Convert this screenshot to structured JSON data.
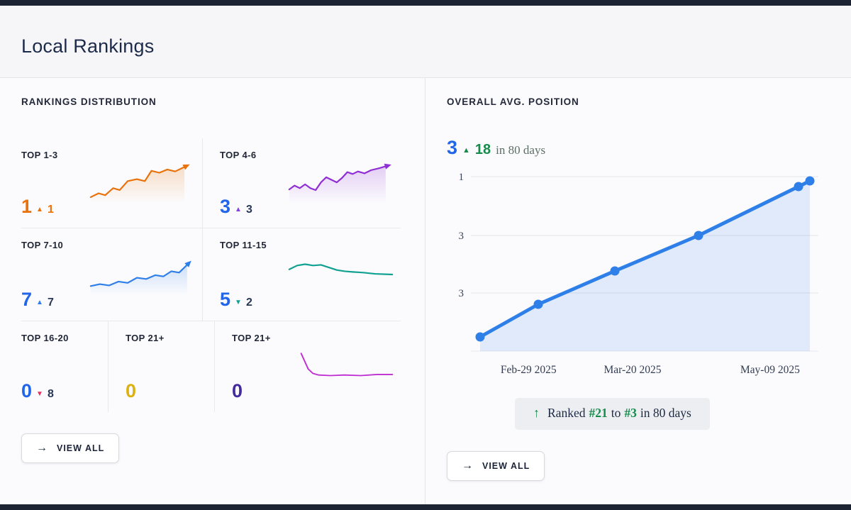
{
  "window": {
    "frame_color": "#1c2433"
  },
  "page": {
    "title": "Local Rankings"
  },
  "icons": {
    "arrow_right": "→",
    "arrow_up": "↑",
    "triangle_up": "▲",
    "triangle_down": "▼"
  },
  "left_panel": {
    "header": "RANKINGS DISTRIBUTION",
    "view_all_label": "VIEW ALL",
    "cards": [
      {
        "label": "TOP 1-3",
        "value": "1",
        "direction": "up",
        "delta": "1",
        "value_color": "#e8720c",
        "arrow_color": "#e8720c",
        "delta_color": "#e8720c",
        "spark": {
          "color": "#e8720c",
          "fill": true,
          "arrow": true,
          "points": [
            [
              2,
              54
            ],
            [
              14,
              48
            ],
            [
              24,
              51
            ],
            [
              36,
              40
            ],
            [
              46,
              43
            ],
            [
              58,
              29
            ],
            [
              72,
              26
            ],
            [
              84,
              29
            ],
            [
              94,
              13
            ],
            [
              106,
              16
            ],
            [
              118,
              11
            ],
            [
              130,
              14
            ],
            [
              144,
              7
            ]
          ]
        }
      },
      {
        "label": "TOP 4-6",
        "value": "3",
        "direction": "up",
        "delta": "3",
        "value_color": "#2166e8",
        "arrow_color": "#8440e0",
        "delta_color": "#273755",
        "spark": {
          "color": "#8f2fd4",
          "fill": true,
          "arrow": true,
          "points": [
            [
              2,
              42
            ],
            [
              10,
              36
            ],
            [
              18,
              40
            ],
            [
              26,
              34
            ],
            [
              34,
              40
            ],
            [
              42,
              43
            ],
            [
              50,
              31
            ],
            [
              58,
              23
            ],
            [
              66,
              27
            ],
            [
              74,
              31
            ],
            [
              82,
              24
            ],
            [
              90,
              15
            ],
            [
              98,
              18
            ],
            [
              106,
              14
            ],
            [
              116,
              17
            ],
            [
              126,
              12
            ],
            [
              138,
              9
            ],
            [
              148,
              6
            ]
          ]
        }
      },
      {
        "label": "TOP 7-10",
        "value": "7",
        "direction": "up",
        "delta": "7",
        "value_color": "#2166e8",
        "arrow_color": "#2e7fe8",
        "delta_color": "#273755",
        "spark": {
          "color": "#2e7fe8",
          "fill": true,
          "arrow": true,
          "points": [
            [
              2,
              50
            ],
            [
              16,
              47
            ],
            [
              30,
              49
            ],
            [
              44,
              43
            ],
            [
              58,
              45
            ],
            [
              72,
              37
            ],
            [
              86,
              39
            ],
            [
              100,
              33
            ],
            [
              112,
              35
            ],
            [
              124,
              27
            ],
            [
              136,
              29
            ],
            [
              148,
              17
            ]
          ]
        }
      },
      {
        "label": "TOP 11-15",
        "value": "5",
        "direction": "down",
        "delta": "2",
        "value_color": "#2166e8",
        "arrow_color": "#11a192",
        "delta_color": "#273755",
        "spark": {
          "color": "#11a192",
          "fill": false,
          "arrow": false,
          "points": [
            [
              2,
              24
            ],
            [
              14,
              18
            ],
            [
              26,
              16
            ],
            [
              38,
              18
            ],
            [
              50,
              17
            ],
            [
              62,
              21
            ],
            [
              74,
              25
            ],
            [
              86,
              27
            ],
            [
              98,
              28
            ],
            [
              114,
              29
            ],
            [
              132,
              31
            ],
            [
              158,
              32
            ]
          ]
        }
      },
      {
        "label": "TOP 16-20",
        "value": "0",
        "direction": "down",
        "delta": "8",
        "value_color": "#2166e8",
        "arrow_color": "#e5315c",
        "delta_color": "#273755",
        "spark": null
      },
      {
        "label": "TOP 21+",
        "value": "0",
        "value_color": "#dcb211",
        "spark": null
      },
      {
        "label": "TOP 21+",
        "value": "0",
        "value_color": "#432a9e",
        "spark": {
          "color": "#bf2ed1",
          "fill": false,
          "arrow": false,
          "points": [
            [
              2,
              8
            ],
            [
              8,
              22
            ],
            [
              14,
              36
            ],
            [
              22,
              44
            ],
            [
              32,
              47
            ],
            [
              52,
              48
            ],
            [
              76,
              47
            ],
            [
              104,
              48
            ],
            [
              132,
              46
            ],
            [
              158,
              46
            ]
          ]
        }
      }
    ]
  },
  "right_panel": {
    "header": "OVERALL AVG. POSITION",
    "stat": {
      "value": "3",
      "delta": "18",
      "suffix": "in 80 days",
      "value_color": "#2166e8",
      "delta_color": "#178a4c",
      "suffix_color": "#5c6f64"
    },
    "chart": {
      "type": "line",
      "line_color": "#2e7fe8",
      "fill_color": "rgba(46,127,232,0.13)",
      "points": [
        [
          47,
          238
        ],
        [
          129,
          192
        ],
        [
          237,
          145
        ],
        [
          355,
          95
        ],
        [
          496,
          26
        ],
        [
          512,
          18
        ]
      ],
      "y_ticks": [
        {
          "label": "1",
          "y": 12
        },
        {
          "label": "3",
          "y": 95
        },
        {
          "label": "3",
          "y": 176
        }
      ],
      "x_labels": [
        "Feb-29 2025",
        "Mar-20 2025",
        "May-09 2025"
      ]
    },
    "badge": {
      "prefix": "Ranked",
      "from": "#21",
      "mid": "to",
      "to": "#3",
      "suffix": "in 80 days",
      "accent_color": "#178a4c"
    },
    "view_all_label": "VIEW ALL"
  }
}
